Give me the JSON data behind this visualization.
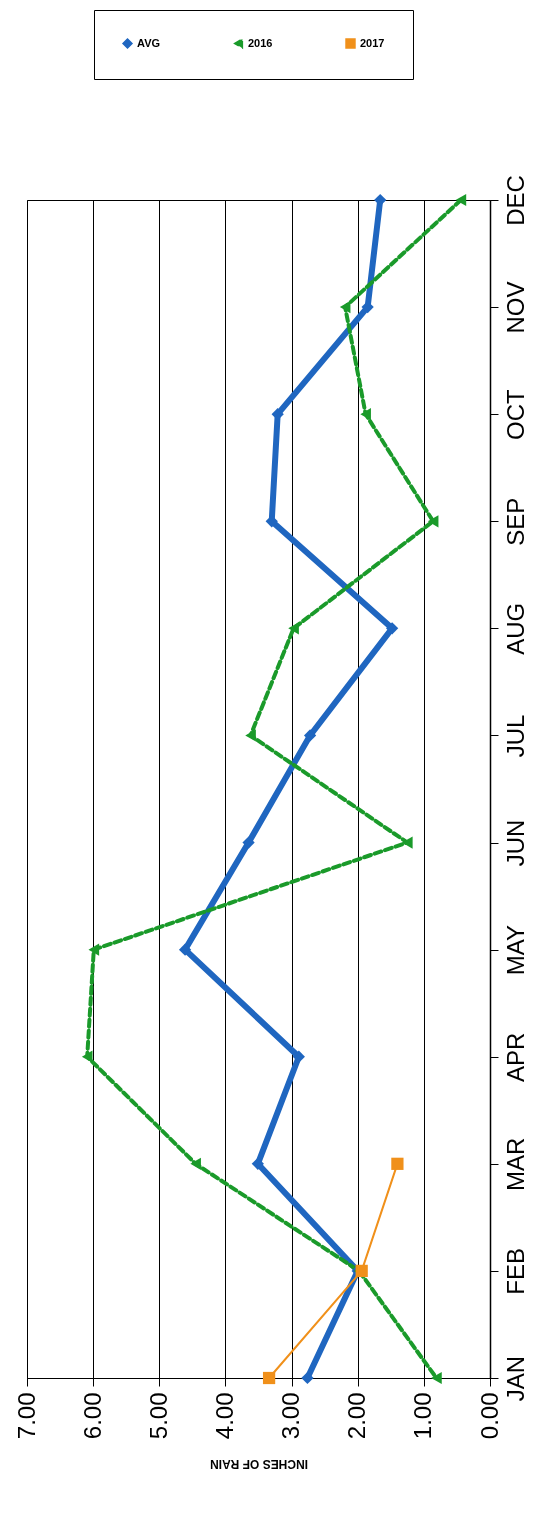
{
  "chart_data": {
    "type": "line",
    "orientation": "horizontal",
    "xlabel": "INCHES OF RAIN",
    "categories": [
      "DEC",
      "NOV",
      "OCT",
      "SEP",
      "AUG",
      "JUL",
      "JUN",
      "MAY",
      "APR",
      "MAR",
      "FEB",
      "JAN"
    ],
    "series": [
      {
        "name": "AVG",
        "color": "#1f66c0",
        "marker": "diamond",
        "line_style": "solid",
        "values": [
          1.66,
          1.85,
          3.21,
          3.3,
          1.48,
          2.72,
          3.65,
          4.61,
          2.89,
          3.51,
          2.0,
          2.76
        ]
      },
      {
        "name": "2016",
        "color": "#1a9a2a",
        "marker": "triangle",
        "line_style": "dashed",
        "values": [
          0.44,
          2.19,
          1.88,
          0.86,
          2.97,
          3.62,
          1.25,
          5.99,
          6.09,
          4.45,
          1.98,
          0.81
        ]
      },
      {
        "name": "2017",
        "color": "#f0901a",
        "marker": "square",
        "line_style": "solid",
        "values": [
          null,
          null,
          null,
          null,
          null,
          null,
          null,
          null,
          null,
          1.4,
          1.94,
          3.34
        ]
      }
    ],
    "xlim": [
      7,
      0
    ],
    "xticks": [
      {
        "value": 7,
        "label": "7.00"
      },
      {
        "value": 6,
        "label": "6.00"
      },
      {
        "value": 5,
        "label": "5.00"
      },
      {
        "value": 4,
        "label": "4.00"
      },
      {
        "value": 3,
        "label": "3.00"
      },
      {
        "value": 2,
        "label": "2.00"
      },
      {
        "value": 1,
        "label": "1.00"
      },
      {
        "value": 0,
        "label": "0.00"
      }
    ],
    "grid": "x",
    "legend": "top"
  }
}
